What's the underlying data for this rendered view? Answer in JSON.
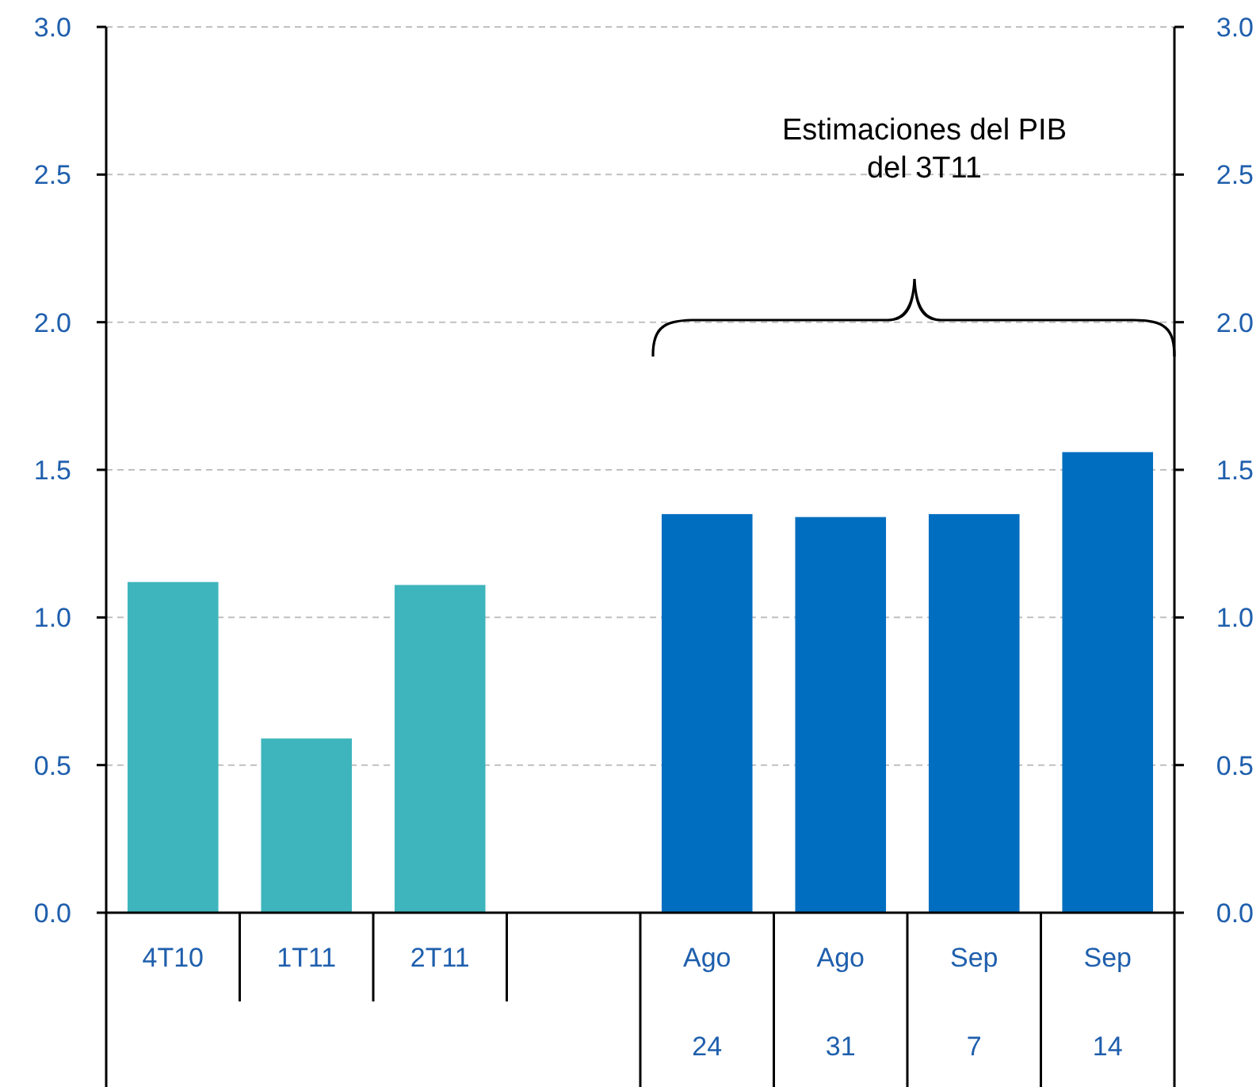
{
  "chart_data": {
    "type": "bar",
    "categories": [
      "4T10",
      "1T11",
      "2T11",
      null,
      "Ago 24",
      "Ago 31",
      "Sep 7",
      "Sep 14"
    ],
    "values": [
      1.12,
      0.59,
      1.11,
      null,
      1.35,
      1.34,
      1.35,
      1.56
    ],
    "colors": [
      "#3eb5bc",
      "#3eb5bc",
      "#3eb5bc",
      null,
      "#006ec0",
      "#006ec0",
      "#006ec0",
      "#006ec0"
    ],
    "ylim": [
      0,
      3
    ],
    "yticks": [
      {
        "value": 0,
        "label": "0.0"
      },
      {
        "value": 0.5,
        "label": "0.5"
      },
      {
        "value": 1,
        "label": "1.0"
      },
      {
        "value": 1.5,
        "label": "1.5"
      },
      {
        "value": 2,
        "label": "2.0"
      },
      {
        "value": 2.5,
        "label": "2.5"
      },
      {
        "value": 3,
        "label": "3.0"
      }
    ],
    "y2lim": [
      0,
      3
    ],
    "y2ticks": [
      {
        "value": 0,
        "label": "0.0"
      },
      {
        "value": 0.5,
        "label": "0.5"
      },
      {
        "value": 1,
        "label": "1.0"
      },
      {
        "value": 1.5,
        "label": "1.5"
      },
      {
        "value": 2,
        "label": "2.0"
      },
      {
        "value": 2.5,
        "label": "2.5"
      },
      {
        "value": 3,
        "label": "3.0"
      }
    ],
    "grid": "y",
    "annotations": [
      "Estimaciones del PIB\ndel 3T11"
    ]
  }
}
